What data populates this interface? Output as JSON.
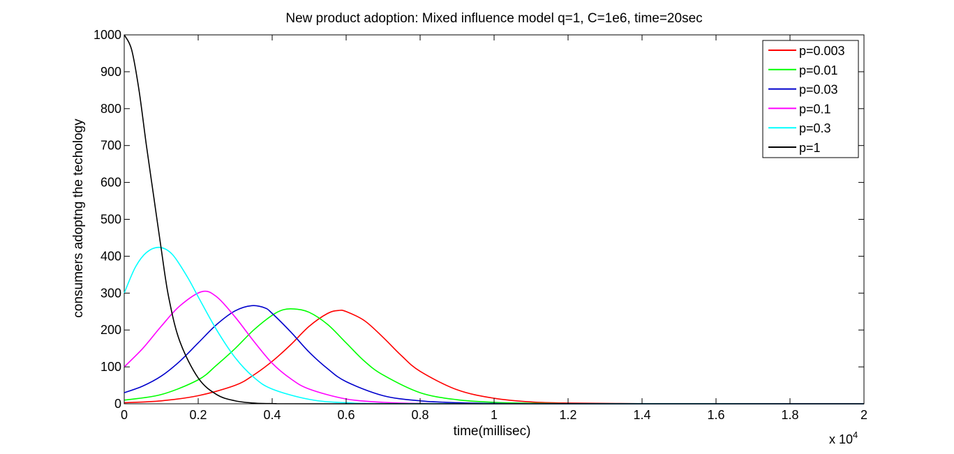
{
  "chart_data": {
    "type": "line",
    "title": "New product adoption: Mixed influence model  q=1, C=1e6, time=20sec",
    "xlabel": "time(millisec)",
    "ylabel": "consumers adoptng the techology",
    "x_multiplier_label": "x 10",
    "x_multiplier_exponent": "4",
    "xlim": [
      0,
      20000
    ],
    "ylim": [
      0,
      1000
    ],
    "x_ticks": [
      0,
      2000,
      4000,
      6000,
      8000,
      10000,
      12000,
      14000,
      16000,
      18000,
      20000
    ],
    "x_tick_labels": [
      "0",
      "0.2",
      "0.4",
      "0.6",
      "0.8",
      "1",
      "1.2",
      "1.4",
      "1.6",
      "1.8",
      "2"
    ],
    "y_ticks": [
      0,
      100,
      200,
      300,
      400,
      500,
      600,
      700,
      800,
      900,
      1000
    ],
    "y_tick_labels": [
      "0",
      "100",
      "200",
      "300",
      "400",
      "500",
      "600",
      "700",
      "800",
      "900",
      "1000"
    ],
    "grid": false,
    "legend_position": "top-right",
    "series": [
      {
        "name": "p=0.003",
        "color": "#ff0000",
        "x": [
          0,
          1000,
          2000,
          3000,
          3500,
          4000,
          4500,
          5000,
          5500,
          5800,
          6000,
          6500,
          7000,
          7500,
          8000,
          9000,
          10000,
          11000,
          12000,
          14000,
          16000,
          20000
        ],
        "y": [
          3,
          8,
          22,
          50,
          78,
          115,
          160,
          210,
          245,
          253,
          250,
          225,
          180,
          130,
          88,
          38,
          15,
          5,
          2,
          0.5,
          0,
          0
        ]
      },
      {
        "name": "p=0.01",
        "color": "#00ff00",
        "x": [
          0,
          1000,
          2000,
          2500,
          3000,
          3500,
          4000,
          4300,
          4600,
          5000,
          5500,
          6000,
          6500,
          7000,
          8000,
          9000,
          10000,
          11000,
          12000,
          14000,
          20000
        ],
        "y": [
          10,
          25,
          65,
          105,
          150,
          200,
          240,
          255,
          257,
          248,
          215,
          165,
          115,
          78,
          30,
          11,
          4,
          1.5,
          0.5,
          0,
          0
        ]
      },
      {
        "name": "p=0.03",
        "color": "#0000cc",
        "x": [
          0,
          500,
          1000,
          1500,
          2000,
          2500,
          3000,
          3450,
          3800,
          4000,
          4500,
          5000,
          5500,
          6000,
          7000,
          8000,
          9000,
          10000,
          12000,
          20000
        ],
        "y": [
          30,
          48,
          75,
          115,
          165,
          215,
          252,
          266,
          260,
          245,
          195,
          140,
          95,
          60,
          22,
          8,
          3,
          1,
          0.2,
          0
        ]
      },
      {
        "name": "p=0.1",
        "color": "#ff00ff",
        "x": [
          0,
          500,
          1000,
          1500,
          2100,
          2500,
          3000,
          3500,
          4000,
          4500,
          5000,
          6000,
          7000,
          8000,
          10000,
          20000
        ],
        "y": [
          100,
          150,
          210,
          265,
          304,
          290,
          235,
          170,
          110,
          68,
          40,
          13,
          4,
          1,
          0,
          0
        ]
      },
      {
        "name": "p=0.3",
        "color": "#00ffff",
        "x": [
          0,
          300,
          600,
          950,
          1300,
          1700,
          2000,
          2500,
          3000,
          3500,
          4000,
          5000,
          6000,
          8000,
          20000
        ],
        "y": [
          300,
          370,
          410,
          424,
          405,
          345,
          290,
          200,
          125,
          72,
          40,
          12,
          3,
          0.3,
          0
        ]
      },
      {
        "name": "p=1",
        "color": "#000000",
        "x": [
          0,
          200,
          400,
          600,
          800,
          1000,
          1200,
          1500,
          2000,
          2500,
          3000,
          3500,
          4000,
          6000,
          20000
        ],
        "y": [
          1000,
          960,
          850,
          700,
          560,
          420,
          290,
          170,
          70,
          25,
          8,
          2,
          0.5,
          0,
          0
        ]
      }
    ]
  }
}
